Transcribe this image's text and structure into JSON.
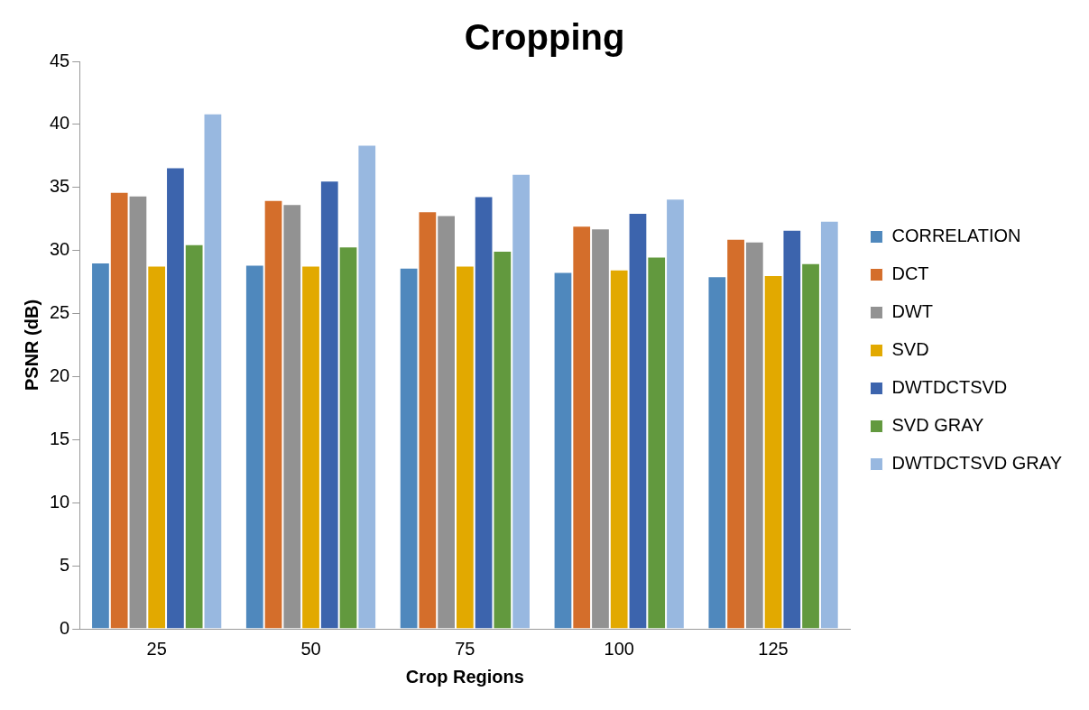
{
  "chart_data": {
    "type": "bar",
    "title": "Cropping",
    "xlabel": "Crop Regions",
    "ylabel": "PSNR (dB)",
    "categories": [
      "25",
      "50",
      "75",
      "100",
      "125"
    ],
    "series": [
      {
        "name": "CORRELATION",
        "color": "#4f88bd",
        "values": [
          29.05,
          28.86,
          28.64,
          28.3,
          27.95
        ]
      },
      {
        "name": "DCT",
        "color": "#d46e2b",
        "values": [
          34.64,
          34.0,
          33.1,
          31.96,
          30.93
        ]
      },
      {
        "name": "DWT",
        "color": "#929292",
        "values": [
          34.36,
          33.67,
          32.81,
          31.75,
          30.71
        ]
      },
      {
        "name": "SVD",
        "color": "#e2a900",
        "values": [
          28.8,
          28.8,
          28.79,
          28.5,
          28.05
        ]
      },
      {
        "name": "DWTDCTSVD",
        "color": "#3c64ad",
        "values": [
          36.6,
          35.53,
          34.3,
          32.98,
          31.64
        ]
      },
      {
        "name": "SVD GRAY",
        "color": "#62993e",
        "values": [
          30.5,
          30.31,
          29.98,
          29.52,
          29.0
        ]
      },
      {
        "name": "DWTDCTSVD GRAY",
        "color": "#98b8e0",
        "values": [
          40.86,
          38.38,
          36.08,
          34.1,
          32.36
        ]
      }
    ],
    "ylim": [
      0,
      45
    ],
    "yticks": [
      0,
      5,
      10,
      15,
      20,
      25,
      30,
      35,
      40,
      45
    ],
    "grid": false,
    "legend": "right"
  }
}
